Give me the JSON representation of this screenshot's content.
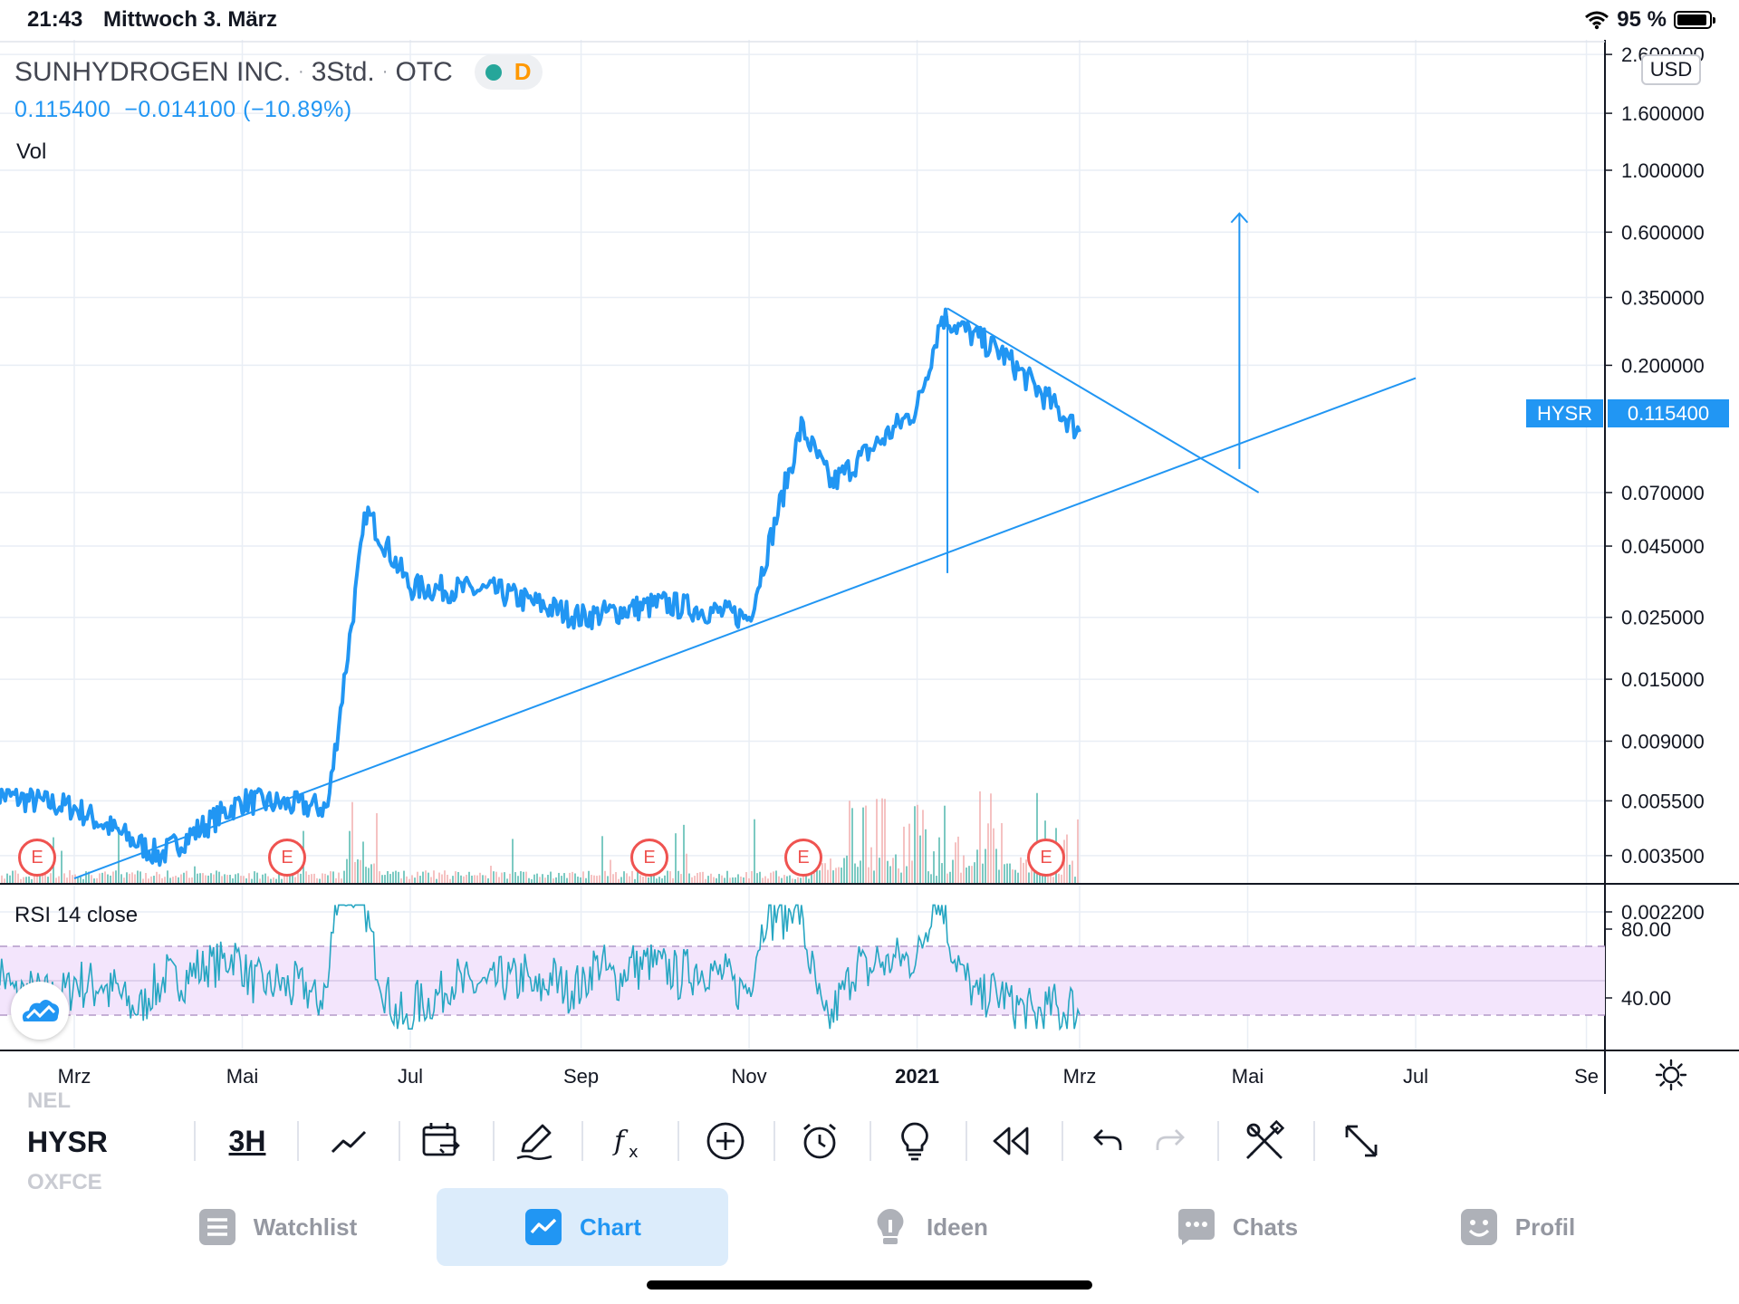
{
  "status_bar": {
    "time": "21:43",
    "date": "Mittwoch 3. März",
    "battery": "95 %",
    "battery_level": 0.95
  },
  "legend": {
    "title": "SUNHYDROGEN INC.",
    "interval": "3Std.",
    "exchange": "OTC",
    "badge_letter": "D",
    "price_line": "0.115400  −0.014100 (−10.89%)",
    "vol_label": "Vol",
    "rsi_label": "RSI 14 close"
  },
  "price_axis": {
    "currency": "USD",
    "labels": [
      "2.600000",
      "1.600000",
      "1.000000",
      "0.600000",
      "0.350000",
      "0.200000",
      "0.070000",
      "0.045000",
      "0.025000",
      "0.015000",
      "0.009000",
      "0.005500",
      "0.003500",
      "0.002200"
    ],
    "symbol_tag": "HYSR",
    "last_price": "0.115400"
  },
  "rsi_axis": {
    "labels": [
      "80.00",
      "40.00"
    ]
  },
  "time_axis": {
    "labels": [
      "Mrz",
      "Mai",
      "Jul",
      "Sep",
      "Nov",
      "2021",
      "Mrz",
      "Mai",
      "Jul",
      "Se"
    ]
  },
  "earnings_marker": "E",
  "toolbar": {
    "symbol": "HYSR",
    "ghost_above": "NEL",
    "ghost_below": "OXFCE",
    "interval": "3H",
    "tools": [
      "chart-type",
      "compare-date-range",
      "drawing-tools",
      "indicators",
      "add",
      "alert",
      "ideas",
      "replay",
      "undo",
      "redo",
      "settings-tools",
      "fullscreen"
    ]
  },
  "bottom_nav": [
    {
      "label": "Watchlist",
      "icon": "list-icon",
      "active": false
    },
    {
      "label": "Chart",
      "icon": "chart-icon",
      "active": true
    },
    {
      "label": "Ideen",
      "icon": "lightbulb-icon",
      "active": false
    },
    {
      "label": "Chats",
      "icon": "chat-icon",
      "active": false
    },
    {
      "label": "Profil",
      "icon": "smiley-icon",
      "active": false
    }
  ],
  "colors": {
    "accent": "#2196f3",
    "rsi_line": "#26a6c2",
    "rsi_band": "#f3e5fc",
    "earnings": "#ef5350",
    "vol_up": "#26a69a",
    "vol_down": "#ef9a9a",
    "grid": "#e9eef5"
  },
  "chart_data": {
    "type": "line",
    "symbol": "HYSR",
    "scale": "log",
    "x": [
      "2020-02",
      "2020-03",
      "2020-04",
      "2020-05",
      "2020-06",
      "2020-06-15",
      "2020-07",
      "2020-08",
      "2020-09",
      "2020-10",
      "2020-11",
      "2020-11-20",
      "2020-12",
      "2021-01",
      "2021-01-10",
      "2021-02",
      "2021-03"
    ],
    "y": [
      0.0058,
      0.0052,
      0.0035,
      0.0055,
      0.0052,
      0.06,
      0.032,
      0.031,
      0.025,
      0.028,
      0.025,
      0.12,
      0.075,
      0.14,
      0.3,
      0.22,
      0.1154
    ],
    "ylim": [
      0.0022,
      2.6
    ],
    "rsi": {
      "period": 14,
      "upper": 70,
      "lower": 30,
      "visible_ticks": [
        80,
        40
      ]
    },
    "trendlines": [
      {
        "from": [
          "2020-03",
          "0.0029"
        ],
        "to": [
          "2021-07",
          "0.18"
        ]
      },
      {
        "from": [
          "2021-01-12",
          "0.32"
        ],
        "to": [
          "2021-05-05",
          "0.07"
        ]
      }
    ],
    "target_arrow": {
      "at": "2021-04-28",
      "from": "0.085",
      "to": "0.70"
    },
    "measure_line": {
      "at": "2021-01-12",
      "from": "0.036",
      "to": "0.30"
    },
    "earnings_dates": [
      "2020-03",
      "2020-05",
      "2020-09",
      "2020-11",
      "2021-02"
    ]
  }
}
